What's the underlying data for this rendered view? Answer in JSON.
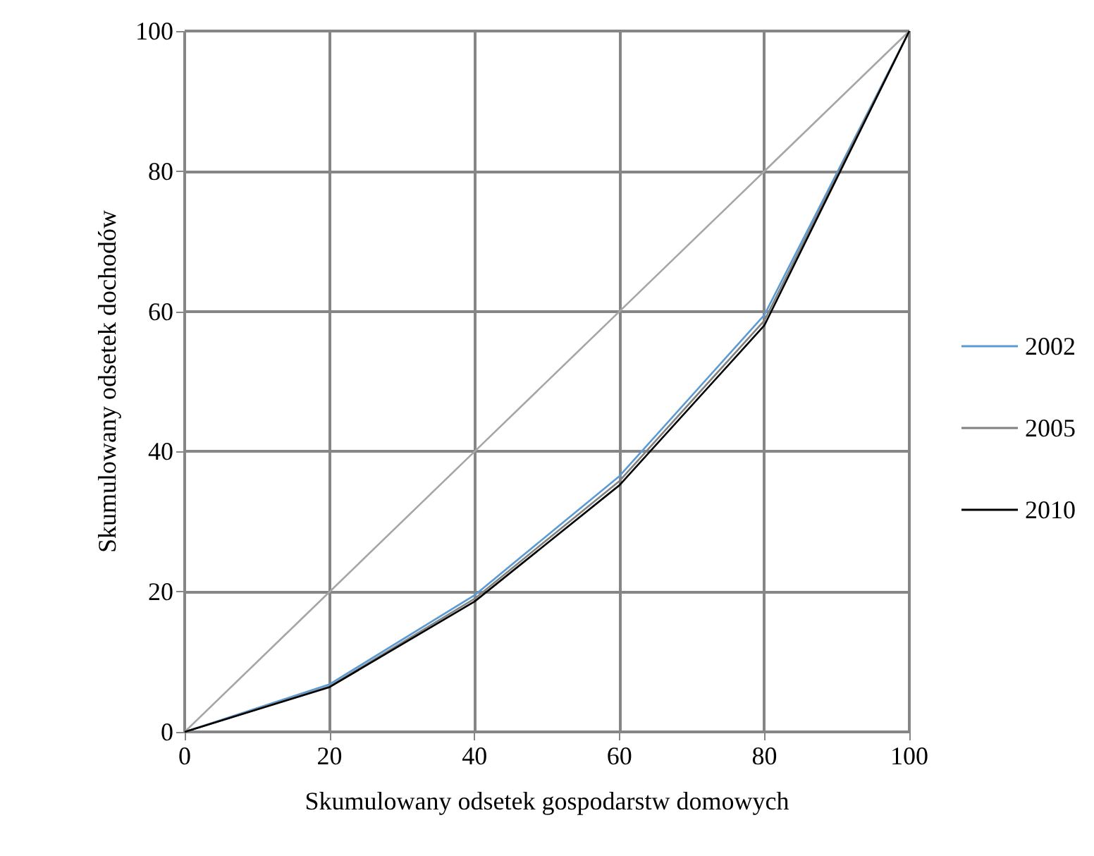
{
  "chart_data": {
    "type": "line",
    "xlabel": "Skumulowany odsetek gospodarstw domowych",
    "ylabel": "Skumulowany odsetek dochodów",
    "x": [
      0,
      20,
      40,
      60,
      80,
      100
    ],
    "series": [
      {
        "name": null,
        "color": "#a6a6a6",
        "values": [
          0,
          20,
          40,
          60,
          80,
          100
        ]
      },
      {
        "name": "2002",
        "color": "#5b9bd5",
        "values": [
          0,
          6.8,
          19.5,
          36.5,
          59.5,
          100
        ]
      },
      {
        "name": "2005",
        "color": "#808080",
        "values": [
          0,
          6.5,
          19,
          35.8,
          58.7,
          100
        ]
      },
      {
        "name": "2010",
        "color": "#000000",
        "values": [
          0,
          6.4,
          18.6,
          35.2,
          58,
          100
        ]
      }
    ],
    "xlim": [
      0,
      100
    ],
    "xticks": [
      0,
      20,
      40,
      60,
      80,
      100
    ],
    "ylim": [
      0,
      100
    ],
    "yticks": [
      0,
      20,
      40,
      60,
      80,
      100
    ],
    "grid": true,
    "legend": "right",
    "marker": "none",
    "line_style": "solid"
  }
}
